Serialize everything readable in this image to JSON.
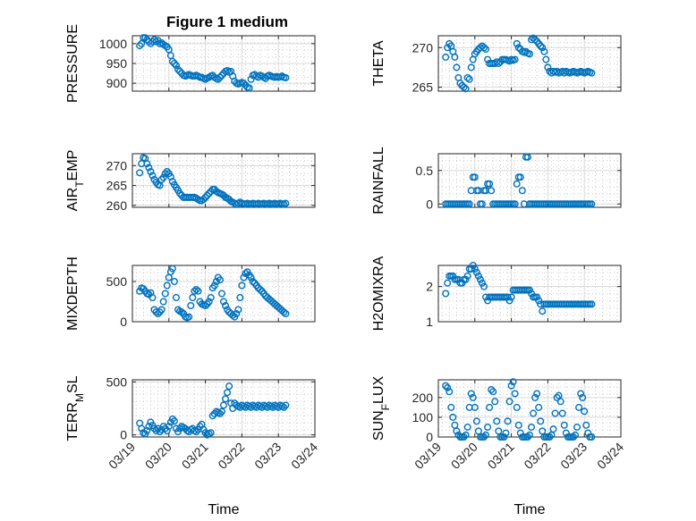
{
  "figure_title": "Figure 1 medium",
  "colors": {
    "marker": "#0072BD",
    "axis": "#262626",
    "grid": "#d9d9d9"
  },
  "x_tick_labels": [
    "03/19",
    "03/20",
    "03/21",
    "03/22",
    "03/23",
    "03/24"
  ],
  "chart_data": [
    {
      "type": "scatter",
      "ylabel": "PRESSURE",
      "ylim": [
        880,
        1020
      ],
      "yticks": [
        900,
        950,
        1000
      ],
      "xlabel": "",
      "x": [
        0.2,
        0.25,
        0.3,
        0.35,
        0.4,
        0.45,
        0.5,
        0.55,
        0.6,
        0.65,
        0.7,
        0.75,
        0.8,
        0.85,
        0.9,
        0.95,
        1.0,
        1.05,
        1.1,
        1.15,
        1.2,
        1.25,
        1.3,
        1.35,
        1.4,
        1.45,
        1.5,
        1.55,
        1.6,
        1.65,
        1.7,
        1.75,
        1.8,
        1.85,
        1.9,
        1.95,
        2.0,
        2.05,
        2.1,
        2.15,
        2.2,
        2.25,
        2.3,
        2.35,
        2.4,
        2.45,
        2.5,
        2.55,
        2.6,
        2.65,
        2.7,
        2.75,
        2.8,
        2.85,
        2.9,
        2.95,
        3.0,
        3.05,
        3.1,
        3.15,
        3.2,
        3.25,
        3.3,
        3.35,
        3.4,
        3.45,
        3.5,
        3.55,
        3.6,
        3.65,
        3.7,
        3.75,
        3.8,
        3.85,
        3.9,
        3.95,
        4.0,
        4.05,
        4.1,
        4.15,
        4.2
      ],
      "y": [
        995,
        1000,
        1015,
        1015,
        1010,
        1005,
        1000,
        1005,
        1010,
        1005,
        1008,
        1000,
        1002,
        998,
        995,
        992,
        985,
        970,
        955,
        950,
        945,
        935,
        930,
        925,
        920,
        918,
        920,
        922,
        920,
        918,
        918,
        920,
        918,
        915,
        915,
        912,
        910,
        913,
        915,
        918,
        920,
        915,
        912,
        910,
        915,
        920,
        925,
        930,
        932,
        928,
        930,
        918,
        905,
        900,
        898,
        900,
        902,
        900,
        895,
        890,
        888,
        910,
        920,
        922,
        918,
        915,
        920,
        918,
        915,
        912,
        918,
        920,
        918,
        916,
        915,
        917,
        915,
        916,
        918,
        915,
        914
      ]
    },
    {
      "type": "scatter",
      "ylabel": "THETA",
      "ylim": [
        264.5,
        271.5
      ],
      "yticks": [
        265,
        270
      ],
      "xlabel": "",
      "x": [
        0.2,
        0.25,
        0.3,
        0.35,
        0.4,
        0.45,
        0.5,
        0.55,
        0.6,
        0.65,
        0.7,
        0.75,
        0.8,
        0.85,
        0.9,
        0.95,
        1.0,
        1.05,
        1.1,
        1.15,
        1.2,
        1.25,
        1.3,
        1.35,
        1.4,
        1.45,
        1.5,
        1.55,
        1.6,
        1.65,
        1.7,
        1.75,
        1.8,
        1.85,
        1.9,
        1.95,
        2.0,
        2.05,
        2.1,
        2.15,
        2.2,
        2.25,
        2.3,
        2.35,
        2.4,
        2.45,
        2.5,
        2.55,
        2.6,
        2.65,
        2.7,
        2.75,
        2.8,
        2.85,
        2.9,
        2.95,
        3.0,
        3.05,
        3.1,
        3.15,
        3.2,
        3.25,
        3.3,
        3.35,
        3.4,
        3.45,
        3.5,
        3.55,
        3.6,
        3.65,
        3.7,
        3.75,
        3.8,
        3.85,
        3.9,
        3.95,
        4.0,
        4.05,
        4.1,
        4.15,
        4.2
      ],
      "y": [
        268.8,
        270,
        270.5,
        270.2,
        269.5,
        268.8,
        267.5,
        266.2,
        265.5,
        265.2,
        265.0,
        264.8,
        266.2,
        266.0,
        267.5,
        268.5,
        269.2,
        269.5,
        269.8,
        270.0,
        270.2,
        270.0,
        269.8,
        268.5,
        268.0,
        268.0,
        268.0,
        268.0,
        268.2,
        268.0,
        268.2,
        268.5,
        268.5,
        268.5,
        268.4,
        268.3,
        268.5,
        268.4,
        268.5,
        270.5,
        270.0,
        269.8,
        269.5,
        269.4,
        269.5,
        269.3,
        269.2,
        271.0,
        271.2,
        271.0,
        270.8,
        270.5,
        270.2,
        270.0,
        269.5,
        268.5,
        267.5,
        267.0,
        266.8,
        267.0,
        266.9,
        267.0,
        266.8,
        266.9,
        267.0,
        266.8,
        267.0,
        266.9,
        266.8,
        266.9,
        267.0,
        266.9,
        266.8,
        266.9,
        267.0,
        266.9,
        266.8,
        266.9,
        267.0,
        266.9,
        266.8
      ]
    },
    {
      "type": "scatter",
      "ylabel": "AIR_TEMP",
      "ylim": [
        259.5,
        273
      ],
      "yticks": [
        260,
        265,
        270
      ],
      "xlabel": "",
      "x": [
        0.2,
        0.25,
        0.3,
        0.35,
        0.4,
        0.45,
        0.5,
        0.55,
        0.6,
        0.65,
        0.7,
        0.75,
        0.8,
        0.85,
        0.9,
        0.95,
        1.0,
        1.05,
        1.1,
        1.15,
        1.2,
        1.25,
        1.3,
        1.35,
        1.4,
        1.45,
        1.5,
        1.55,
        1.6,
        1.65,
        1.7,
        1.75,
        1.8,
        1.85,
        1.9,
        1.95,
        2.0,
        2.05,
        2.1,
        2.15,
        2.2,
        2.25,
        2.3,
        2.35,
        2.4,
        2.45,
        2.5,
        2.55,
        2.6,
        2.65,
        2.7,
        2.75,
        2.8,
        2.85,
        2.9,
        2.95,
        3.0,
        3.05,
        3.1,
        3.15,
        3.2,
        3.25,
        3.3,
        3.35,
        3.4,
        3.45,
        3.5,
        3.55,
        3.6,
        3.65,
        3.7,
        3.75,
        3.8,
        3.85,
        3.9,
        3.95,
        4.0,
        4.05,
        4.1,
        4.15,
        4.2
      ],
      "y": [
        268.2,
        270.5,
        272.0,
        271.8,
        270.5,
        269.5,
        268.5,
        267.5,
        266.5,
        265.8,
        265.2,
        265.0,
        266.5,
        267.0,
        268.0,
        268.5,
        268.0,
        267.2,
        266.0,
        265.2,
        264.5,
        263.8,
        263.0,
        262.5,
        262.0,
        262.0,
        262.0,
        262.0,
        262.0,
        262.0,
        262.0,
        261.8,
        261.5,
        261.2,
        261.2,
        261.5,
        262.0,
        262.5,
        263.0,
        263.5,
        264.0,
        264.0,
        263.5,
        263.2,
        263.0,
        262.8,
        262.5,
        262.0,
        261.8,
        261.5,
        261.0,
        260.8,
        260.5,
        260.2,
        260.5,
        260.8,
        260.5,
        260.4,
        260.3,
        260.5,
        260.4,
        260.3,
        260.5,
        260.4,
        260.3,
        260.5,
        260.4,
        260.3,
        260.5,
        260.4,
        260.3,
        260.5,
        260.4,
        260.3,
        260.5,
        260.4,
        260.3,
        260.5,
        260.4,
        260.3,
        260.5
      ]
    },
    {
      "type": "scatter",
      "ylabel": "RAINFALL",
      "ylim": [
        -0.05,
        0.75
      ],
      "yticks": [
        0,
        0.5
      ],
      "xlabel": "",
      "x": [
        0.2,
        0.25,
        0.3,
        0.35,
        0.4,
        0.45,
        0.5,
        0.55,
        0.6,
        0.65,
        0.7,
        0.75,
        0.8,
        0.85,
        0.9,
        0.95,
        1.0,
        1.05,
        1.1,
        1.15,
        1.2,
        1.25,
        1.3,
        1.35,
        1.4,
        1.45,
        1.5,
        1.55,
        1.6,
        1.65,
        1.7,
        1.75,
        1.8,
        1.85,
        1.9,
        1.95,
        2.0,
        2.05,
        2.1,
        2.15,
        2.2,
        2.25,
        2.3,
        2.35,
        2.4,
        2.45,
        2.5,
        2.55,
        2.6,
        2.65,
        2.7,
        2.75,
        2.8,
        2.85,
        2.9,
        2.95,
        3.0,
        3.05,
        3.1,
        3.15,
        3.2,
        3.25,
        3.3,
        3.35,
        3.4,
        3.45,
        3.5,
        3.55,
        3.6,
        3.65,
        3.7,
        3.75,
        3.8,
        3.85,
        3.9,
        3.95,
        4.0,
        4.05,
        4.1,
        4.15,
        4.2
      ],
      "y": [
        0,
        0,
        0,
        0,
        0,
        0,
        0,
        0,
        0,
        0,
        0,
        0,
        0,
        0,
        0.2,
        0.4,
        0.4,
        0.2,
        0.2,
        0,
        0,
        0.2,
        0.2,
        0.3,
        0.3,
        0.2,
        0,
        0,
        0,
        0,
        0,
        0,
        0,
        0,
        0,
        0,
        0,
        0,
        0,
        0.3,
        0.4,
        0.4,
        0.2,
        0,
        0.7,
        0.7,
        0,
        0,
        0,
        0,
        0,
        0,
        0,
        0,
        0,
        0,
        0,
        0,
        0,
        0,
        0,
        0,
        0,
        0,
        0,
        0,
        0,
        0,
        0,
        0,
        0,
        0,
        0,
        0,
        0,
        0,
        0,
        0,
        0,
        0,
        0
      ]
    },
    {
      "type": "scatter",
      "ylabel": "MIXDEPTH",
      "ylim": [
        0,
        700
      ],
      "yticks": [
        0,
        500
      ],
      "xlabel": "",
      "x": [
        0.2,
        0.25,
        0.3,
        0.35,
        0.4,
        0.45,
        0.5,
        0.55,
        0.6,
        0.65,
        0.7,
        0.75,
        0.8,
        0.85,
        0.9,
        0.95,
        1.0,
        1.05,
        1.1,
        1.15,
        1.2,
        1.25,
        1.3,
        1.35,
        1.4,
        1.45,
        1.5,
        1.55,
        1.6,
        1.65,
        1.7,
        1.75,
        1.8,
        1.85,
        1.9,
        1.95,
        2.0,
        2.05,
        2.1,
        2.15,
        2.2,
        2.25,
        2.3,
        2.35,
        2.4,
        2.45,
        2.5,
        2.55,
        2.6,
        2.65,
        2.7,
        2.75,
        2.8,
        2.85,
        2.9,
        2.95,
        3.0,
        3.05,
        3.1,
        3.15,
        3.2,
        3.25,
        3.3,
        3.35,
        3.4,
        3.45,
        3.5,
        3.55,
        3.6,
        3.65,
        3.7,
        3.75,
        3.8,
        3.85,
        3.9,
        3.95,
        4.0,
        4.05,
        4.1,
        4.15,
        4.2
      ],
      "y": [
        380,
        420,
        410,
        380,
        350,
        340,
        360,
        300,
        150,
        120,
        100,
        120,
        150,
        250,
        350,
        450,
        550,
        620,
        660,
        500,
        300,
        150,
        130,
        120,
        100,
        60,
        50,
        60,
        200,
        300,
        380,
        400,
        380,
        250,
        220,
        210,
        200,
        220,
        250,
        300,
        420,
        450,
        500,
        550,
        520,
        350,
        250,
        200,
        150,
        120,
        100,
        80,
        60,
        100,
        150,
        300,
        450,
        550,
        600,
        620,
        580,
        550,
        500,
        480,
        450,
        420,
        400,
        380,
        350,
        320,
        300,
        280,
        260,
        240,
        220,
        200,
        180,
        160,
        140,
        120,
        100
      ]
    },
    {
      "type": "scatter",
      "ylabel": "H2OMIXRA",
      "ylim": [
        1,
        2.6
      ],
      "yticks": [
        1,
        2
      ],
      "xlabel": "",
      "x": [
        0.2,
        0.25,
        0.3,
        0.35,
        0.4,
        0.45,
        0.5,
        0.55,
        0.6,
        0.65,
        0.7,
        0.75,
        0.8,
        0.85,
        0.9,
        0.95,
        1.0,
        1.05,
        1.1,
        1.15,
        1.2,
        1.25,
        1.3,
        1.35,
        1.4,
        1.45,
        1.5,
        1.55,
        1.6,
        1.65,
        1.7,
        1.75,
        1.8,
        1.85,
        1.9,
        1.95,
        2.0,
        2.05,
        2.1,
        2.15,
        2.2,
        2.25,
        2.3,
        2.35,
        2.4,
        2.45,
        2.5,
        2.55,
        2.6,
        2.65,
        2.7,
        2.75,
        2.8,
        2.85,
        2.9,
        2.95,
        3.0,
        3.05,
        3.1,
        3.15,
        3.2,
        3.25,
        3.3,
        3.35,
        3.4,
        3.45,
        3.5,
        3.55,
        3.6,
        3.65,
        3.7,
        3.75,
        3.8,
        3.85,
        3.9,
        3.95,
        4.0,
        4.05,
        4.1,
        4.15,
        4.2
      ],
      "y": [
        1.8,
        2.1,
        2.3,
        2.3,
        2.3,
        2.2,
        2.2,
        2.2,
        2.1,
        2.1,
        2.2,
        2.2,
        2.3,
        2.5,
        2.5,
        2.6,
        2.5,
        2.4,
        2.3,
        2.2,
        2.1,
        2.0,
        1.7,
        1.6,
        1.7,
        1.7,
        1.7,
        1.7,
        1.7,
        1.7,
        1.7,
        1.7,
        1.7,
        1.7,
        1.7,
        1.6,
        1.7,
        1.9,
        1.9,
        1.9,
        1.9,
        1.9,
        1.9,
        1.9,
        1.9,
        1.9,
        1.9,
        1.8,
        1.7,
        1.7,
        1.7,
        1.6,
        1.5,
        1.3,
        1.5,
        1.5,
        1.5,
        1.5,
        1.5,
        1.5,
        1.5,
        1.5,
        1.5,
        1.5,
        1.5,
        1.5,
        1.5,
        1.5,
        1.5,
        1.5,
        1.5,
        1.5,
        1.5,
        1.5,
        1.5,
        1.5,
        1.5,
        1.5,
        1.5,
        1.5,
        1.5
      ]
    },
    {
      "type": "scatter",
      "ylabel": "TERR_MSL",
      "ylim": [
        -20,
        520
      ],
      "yticks": [
        0,
        500
      ],
      "xlabel": "Time",
      "x": [
        0.2,
        0.25,
        0.3,
        0.35,
        0.4,
        0.45,
        0.5,
        0.55,
        0.6,
        0.65,
        0.7,
        0.75,
        0.8,
        0.85,
        0.9,
        0.95,
        1.0,
        1.05,
        1.1,
        1.15,
        1.2,
        1.25,
        1.3,
        1.35,
        1.4,
        1.45,
        1.5,
        1.55,
        1.6,
        1.65,
        1.7,
        1.75,
        1.8,
        1.85,
        1.9,
        1.95,
        2.0,
        2.05,
        2.1,
        2.15,
        2.2,
        2.25,
        2.3,
        2.35,
        2.4,
        2.45,
        2.5,
        2.55,
        2.6,
        2.65,
        2.7,
        2.75,
        2.8,
        2.85,
        2.9,
        2.95,
        3.0,
        3.05,
        3.1,
        3.15,
        3.2,
        3.25,
        3.3,
        3.35,
        3.4,
        3.45,
        3.5,
        3.55,
        3.6,
        3.65,
        3.7,
        3.75,
        3.8,
        3.85,
        3.9,
        3.95,
        4.0,
        4.05,
        4.1,
        4.15,
        4.2
      ],
      "y": [
        110,
        60,
        20,
        10,
        40,
        80,
        120,
        90,
        60,
        40,
        60,
        30,
        50,
        80,
        60,
        40,
        80,
        120,
        150,
        130,
        60,
        30,
        60,
        80,
        70,
        60,
        40,
        30,
        50,
        60,
        40,
        30,
        50,
        80,
        100,
        50,
        20,
        0,
        10,
        20,
        180,
        200,
        220,
        210,
        200,
        220,
        280,
        340,
        400,
        460,
        300,
        250,
        300,
        280,
        270,
        260,
        280,
        270,
        260,
        280,
        270,
        260,
        280,
        270,
        260,
        280,
        270,
        260,
        280,
        270,
        260,
        280,
        270,
        260,
        280,
        270,
        260,
        280,
        270,
        260,
        280
      ]
    },
    {
      "type": "scatter",
      "ylabel": "SUN_FLUX",
      "ylim": [
        0,
        290
      ],
      "yticks": [
        0,
        100,
        200
      ],
      "xlabel": "Time",
      "x": [
        0.2,
        0.25,
        0.3,
        0.35,
        0.4,
        0.45,
        0.5,
        0.55,
        0.6,
        0.65,
        0.7,
        0.75,
        0.8,
        0.85,
        0.9,
        0.95,
        1.0,
        1.05,
        1.1,
        1.15,
        1.2,
        1.25,
        1.3,
        1.35,
        1.4,
        1.45,
        1.5,
        1.55,
        1.6,
        1.65,
        1.7,
        1.75,
        1.8,
        1.85,
        1.9,
        1.95,
        2.0,
        2.05,
        2.1,
        2.15,
        2.2,
        2.25,
        2.3,
        2.35,
        2.4,
        2.45,
        2.5,
        2.55,
        2.6,
        2.65,
        2.7,
        2.75,
        2.8,
        2.85,
        2.9,
        2.95,
        3.0,
        3.05,
        3.1,
        3.15,
        3.2,
        3.25,
        3.3,
        3.35,
        3.4,
        3.45,
        3.5,
        3.55,
        3.6,
        3.65,
        3.7,
        3.75,
        3.8,
        3.85,
        3.9,
        3.95,
        4.0,
        4.05,
        4.1,
        4.15,
        4.2
      ],
      "y": [
        260,
        250,
        230,
        150,
        100,
        60,
        30,
        10,
        0,
        0,
        0,
        10,
        50,
        150,
        220,
        200,
        150,
        80,
        30,
        0,
        0,
        0,
        10,
        50,
        150,
        240,
        230,
        180,
        80,
        30,
        0,
        0,
        0,
        20,
        80,
        180,
        260,
        280,
        220,
        150,
        60,
        20,
        0,
        0,
        0,
        0,
        10,
        50,
        120,
        200,
        220,
        150,
        80,
        30,
        0,
        0,
        0,
        0,
        10,
        40,
        120,
        200,
        210,
        180,
        120,
        60,
        20,
        0,
        0,
        0,
        0,
        10,
        50,
        150,
        220,
        200,
        130,
        60,
        20,
        0,
        0
      ]
    }
  ]
}
